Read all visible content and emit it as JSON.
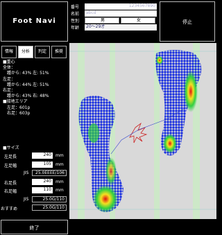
{
  "header": {
    "logo": "Foot Navi",
    "fields": [
      {
        "label": "番号",
        "value": "1234567890"
      },
      {
        "label": "名前",
        "value": "abcd"
      },
      {
        "label": "性別",
        "options": [
          "男",
          "女"
        ]
      },
      {
        "label": "年齢",
        "value": "20～29才"
      }
    ],
    "stop_button": "停止"
  },
  "tabs": [
    "情報",
    "分析",
    "判定",
    "推奨"
  ],
  "analysis": [
    "■重心",
    "全体：",
    "　踵から: 43% 左: 51%",
    "左足：",
    "　踵から: 44% 左: 51%",
    "右足：",
    "　踵から: 43% 右: 48%",
    "■接地エリア",
    "　左足：601p",
    "　右足：603p"
  ],
  "size": {
    "title": "■サイズ",
    "rows": [
      {
        "label": "左足長",
        "value": "240",
        "unit": "mm"
      },
      {
        "label": "左足幅",
        "value": "105",
        "unit": "mm"
      },
      {
        "label": "JIS",
        "value": "25.0EEEE/106"
      },
      {
        "label": "右足長",
        "value": "240",
        "unit": "mm"
      },
      {
        "label": "右足幅",
        "value": "110",
        "unit": "mm"
      },
      {
        "label": "JIS",
        "value": "25.0G/110"
      },
      {
        "label": "おすすめ",
        "value": "25.0G/110"
      }
    ]
  },
  "exit_button": "終了"
}
